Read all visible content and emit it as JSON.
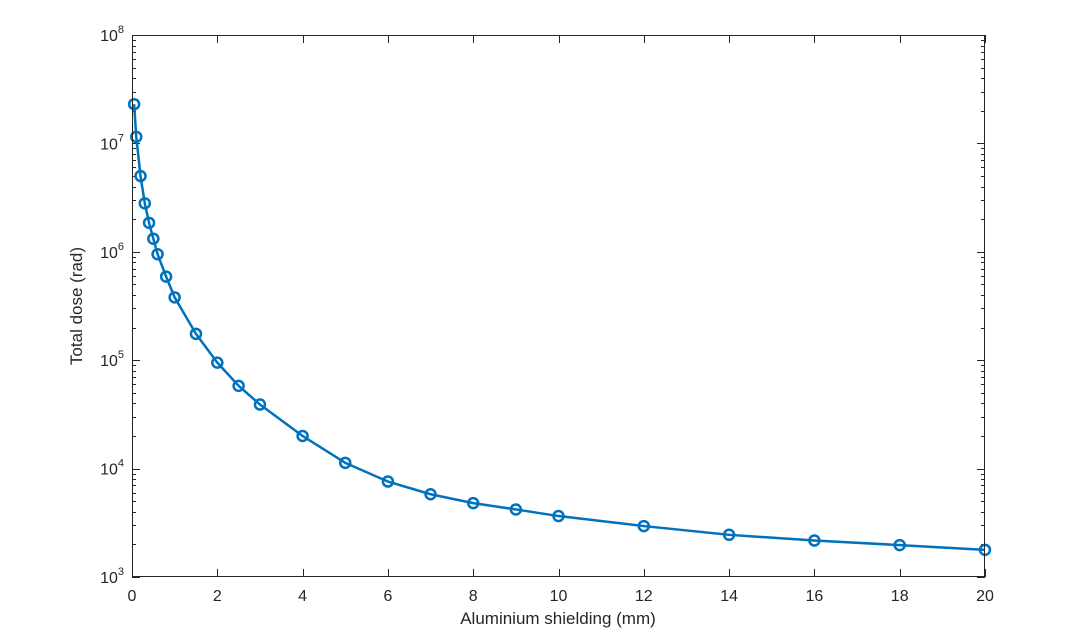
{
  "chart_data": {
    "type": "line",
    "title": "",
    "xlabel": "Aluminium shielding (mm)",
    "ylabel": "Total dose (rad)",
    "xlim": [
      0,
      20
    ],
    "ylim": [
      1000,
      100000000
    ],
    "yscale": "log",
    "grid": false,
    "x_ticks": [
      {
        "value": 0,
        "label": "0"
      },
      {
        "value": 2,
        "label": "2"
      },
      {
        "value": 4,
        "label": "4"
      },
      {
        "value": 6,
        "label": "6"
      },
      {
        "value": 8,
        "label": "8"
      },
      {
        "value": 10,
        "label": "10"
      },
      {
        "value": 12,
        "label": "12"
      },
      {
        "value": 14,
        "label": "14"
      },
      {
        "value": 16,
        "label": "16"
      },
      {
        "value": 18,
        "label": "18"
      },
      {
        "value": 20,
        "label": "20"
      }
    ],
    "y_ticks": [
      {
        "value": 1000,
        "base": "10",
        "exp": "3"
      },
      {
        "value": 10000,
        "base": "10",
        "exp": "4"
      },
      {
        "value": 100000,
        "base": "10",
        "exp": "5"
      },
      {
        "value": 1000000,
        "base": "10",
        "exp": "6"
      },
      {
        "value": 10000000,
        "base": "10",
        "exp": "7"
      },
      {
        "value": 100000000,
        "base": "10",
        "exp": "8"
      }
    ],
    "series": [
      {
        "color": "#0072BD",
        "marker": "circle",
        "x": [
          0.05,
          0.1,
          0.2,
          0.3,
          0.4,
          0.5,
          0.6,
          0.8,
          1.0,
          1.5,
          2.0,
          2.5,
          3.0,
          4.0,
          5.0,
          6.0,
          7.0,
          8.0,
          9.0,
          10.0,
          12.0,
          14.0,
          16.0,
          18.0,
          20.0
        ],
        "y": [
          23000000,
          11500000,
          5000000,
          2800000,
          1850000,
          1320000,
          950000,
          590000,
          380000,
          175000,
          95000,
          58000,
          39000,
          20000,
          11300,
          7600,
          5800,
          4800,
          4200,
          3650,
          2950,
          2450,
          2170,
          1970,
          1780
        ]
      }
    ]
  }
}
